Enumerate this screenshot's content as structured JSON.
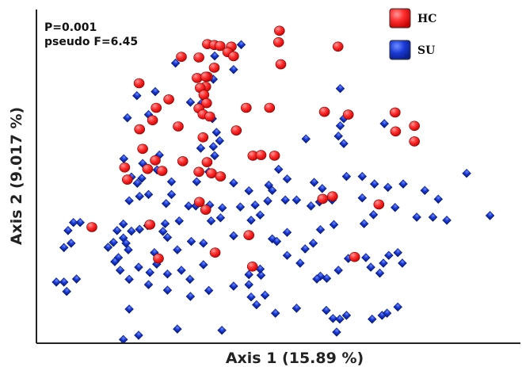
{
  "chart_data": {
    "type": "scatter",
    "title": "",
    "xlabel": "Axis 1 (15.89 %)",
    "ylabel": "Axis 2 (9.017 %)",
    "xlim": [
      0,
      100
    ],
    "ylim": [
      0,
      100
    ],
    "grid": false,
    "legend_position": "top-right",
    "annotations": [
      "P=0.001",
      "pseudo F=6.45"
    ],
    "series": [
      {
        "name": "HC",
        "color": "#ff2a2a",
        "marker": "circle",
        "points": [
          [
            51.2,
            97.5
          ],
          [
            51.0,
            93.8
          ],
          [
            51.5,
            86.7
          ],
          [
            64.2,
            92.4
          ],
          [
            35.2,
            93.2
          ],
          [
            36.7,
            92.9
          ],
          [
            38.0,
            92.6
          ],
          [
            40.5,
            92.4
          ],
          [
            39.7,
            90.6
          ],
          [
            41.0,
            89.3
          ],
          [
            29.4,
            89.1
          ],
          [
            33.3,
            88.9
          ],
          [
            36.7,
            85.6
          ],
          [
            35.2,
            82.7
          ],
          [
            32.9,
            82.3
          ],
          [
            34.8,
            82.7
          ],
          [
            20.0,
            80.6
          ],
          [
            34.8,
            79.5
          ],
          [
            33.6,
            79.1
          ],
          [
            34.4,
            76.9
          ],
          [
            35.0,
            74.2
          ],
          [
            26.6,
            75.4
          ],
          [
            23.8,
            72.7
          ],
          [
            33.3,
            72.5
          ],
          [
            34.2,
            70.6
          ],
          [
            23.0,
            68.7
          ],
          [
            35.7,
            69.9
          ],
          [
            43.8,
            72.7
          ],
          [
            49.0,
            72.7
          ],
          [
            28.7,
            66.7
          ],
          [
            20.1,
            65.8
          ],
          [
            41.6,
            65.4
          ],
          [
            34.2,
            63.2
          ],
          [
            20.8,
            59.5
          ],
          [
            45.3,
            57.3
          ],
          [
            47.1,
            57.5
          ],
          [
            50.1,
            57.3
          ],
          [
            23.6,
            55.8
          ],
          [
            29.7,
            55.5
          ],
          [
            35.1,
            55.2
          ],
          [
            16.8,
            53.5
          ],
          [
            21.9,
            53.0
          ],
          [
            25.1,
            52.4
          ],
          [
            33.3,
            52.1
          ],
          [
            36.1,
            51.6
          ],
          [
            38.1,
            50.6
          ],
          [
            17.4,
            49.6
          ],
          [
            61.2,
            71.4
          ],
          [
            66.5,
            70.5
          ],
          [
            76.9,
            71.2
          ],
          [
            81.2,
            66.9
          ],
          [
            77.0,
            65.1
          ],
          [
            81.2,
            61.9
          ],
          [
            60.8,
            43.4
          ],
          [
            63.0,
            44.2
          ],
          [
            73.3,
            41.6
          ],
          [
            33.4,
            42.4
          ],
          [
            34.8,
            39.9
          ],
          [
            22.4,
            35.1
          ],
          [
            44.4,
            31.7
          ],
          [
            67.9,
            24.7
          ],
          [
            9.5,
            34.3
          ],
          [
            24.3,
            24.2
          ],
          [
            36.9,
            26.1
          ],
          [
            45.2,
            21.6
          ]
        ]
      },
      {
        "name": "SU",
        "color": "#1a33cc",
        "marker": "diamond",
        "points": [
          [
            41.0,
            85.0
          ],
          [
            28.1,
            87.1
          ],
          [
            36.8,
            89.4
          ],
          [
            42.7,
            93.0
          ],
          [
            36.5,
            81.9
          ],
          [
            23.6,
            77.9
          ],
          [
            19.5,
            76.6
          ],
          [
            31.4,
            74.5
          ],
          [
            33.9,
            74.2
          ],
          [
            17.4,
            69.5
          ],
          [
            22.1,
            70.5
          ],
          [
            36.3,
            69.2
          ],
          [
            64.7,
            78.9
          ],
          [
            65.5,
            69.2
          ],
          [
            64.7,
            66.9
          ],
          [
            74.5,
            67.6
          ],
          [
            64.3,
            63.6
          ],
          [
            65.5,
            61.2
          ],
          [
            57.1,
            62.7
          ],
          [
            37.2,
            64.8
          ],
          [
            37.9,
            62.1
          ],
          [
            36.5,
            60.2
          ],
          [
            33.7,
            59.7
          ],
          [
            36.8,
            57.3
          ],
          [
            24.5,
            57.5
          ],
          [
            16.6,
            56.3
          ],
          [
            20.8,
            54.8
          ],
          [
            24.0,
            52.7
          ],
          [
            35.5,
            52.1
          ],
          [
            20.6,
            50.0
          ],
          [
            18.3,
            50.4
          ],
          [
            27.2,
            48.9
          ],
          [
            32.8,
            48.9
          ],
          [
            51.0,
            52.9
          ],
          [
            52.9,
            49.8
          ],
          [
            41.0,
            48.5
          ],
          [
            44.4,
            46.0
          ],
          [
            48.8,
            47.8
          ],
          [
            49.6,
            46.1
          ],
          [
            58.9,
            48.7
          ],
          [
            60.7,
            46.7
          ],
          [
            66.1,
            50.6
          ],
          [
            69.6,
            50.6
          ],
          [
            72.3,
            48.2
          ],
          [
            75.3,
            47.1
          ],
          [
            78.7,
            48.2
          ],
          [
            62.9,
            43.0
          ],
          [
            60.1,
            42.4
          ],
          [
            58.2,
            41.1
          ],
          [
            19.6,
            48.4
          ],
          [
            22.1,
            44.8
          ],
          [
            20.1,
            44.2
          ],
          [
            17.8,
            42.8
          ],
          [
            27.2,
            44.8
          ],
          [
            26.0,
            41.9
          ],
          [
            31.0,
            41.1
          ],
          [
            32.6,
            41.1
          ],
          [
            35.7,
            41.4
          ],
          [
            38.5,
            40.5
          ],
          [
            42.5,
            40.8
          ],
          [
            45.8,
            41.4
          ],
          [
            48.6,
            42.7
          ],
          [
            52.5,
            43.0
          ],
          [
            55.0,
            43.0
          ],
          [
            69.6,
            43.7
          ],
          [
            83.5,
            46.1
          ],
          [
            86.5,
            43.3
          ],
          [
            76.9,
            40.6
          ],
          [
            81.7,
            37.5
          ],
          [
            85.3,
            37.5
          ],
          [
            88.4,
            36.5
          ],
          [
            92.8,
            51.6
          ],
          [
            98.0,
            38.0
          ],
          [
            46.9,
            38.2
          ],
          [
            44.9,
            36.5
          ],
          [
            38.1,
            37.3
          ],
          [
            36.0,
            36.3
          ],
          [
            28.9,
            36.3
          ],
          [
            25.8,
            35.4
          ],
          [
            21.9,
            34.8
          ],
          [
            20.1,
            33.6
          ],
          [
            16.5,
            35.3
          ],
          [
            18.3,
            33.0
          ],
          [
            15.1,
            33.2
          ],
          [
            6.9,
            35.8
          ],
          [
            5.4,
            35.8
          ],
          [
            16.5,
            30.8
          ],
          [
            17.1,
            29.1
          ],
          [
            17.6,
            27.0
          ],
          [
            13.1,
            27.8
          ],
          [
            15.4,
            24.5
          ],
          [
            25.3,
            32.9
          ],
          [
            26.3,
            31.0
          ],
          [
            28.5,
            27.0
          ],
          [
            23.4,
            26.1
          ],
          [
            23.9,
            22.4
          ],
          [
            31.6,
            29.7
          ],
          [
            34.3,
            29.1
          ],
          [
            41.0,
            31.5
          ],
          [
            49.6,
            30.5
          ],
          [
            50.6,
            29.7
          ],
          [
            52.9,
            32.6
          ],
          [
            60.3,
            33.5
          ],
          [
            63.3,
            35.1
          ],
          [
            72.1,
            38.3
          ],
          [
            70.0,
            35.4
          ],
          [
            58.7,
            29.1
          ],
          [
            56.9,
            27.3
          ],
          [
            52.9,
            25.2
          ],
          [
            55.8,
            22.7
          ],
          [
            66.5,
            24.2
          ],
          [
            64.3,
            20.4
          ],
          [
            70.4,
            24.5
          ],
          [
            71.5,
            21.4
          ],
          [
            74.3,
            22.7
          ],
          [
            75.5,
            25.2
          ],
          [
            77.5,
            26.1
          ],
          [
            78.5,
            22.7
          ],
          [
            73.5,
            19.5
          ],
          [
            60.3,
            18.5
          ],
          [
            59.5,
            17.6
          ],
          [
            61.7,
            17.8
          ],
          [
            34.3,
            22.2
          ],
          [
            29.4,
            20.4
          ],
          [
            26.3,
            19.2
          ],
          [
            22.4,
            19.7
          ],
          [
            19.9,
            21.4
          ],
          [
            14.6,
            23.2
          ],
          [
            15.8,
            20.4
          ],
          [
            44.4,
            19.0
          ],
          [
            44.4,
            15.8
          ],
          [
            31.3,
            17.5
          ],
          [
            35.5,
            13.9
          ],
          [
            41.0,
            15.3
          ],
          [
            47.1,
            18.8
          ],
          [
            46.9,
            20.8
          ],
          [
            31.4,
            12.0
          ],
          [
            26.3,
            14.0
          ],
          [
            22.1,
            15.8
          ],
          [
            17.8,
            17.5
          ],
          [
            6.1,
            17.6
          ],
          [
            3.9,
            13.6
          ],
          [
            3.3,
            16.6
          ],
          [
            1.6,
            16.6
          ],
          [
            3.3,
            27.7
          ],
          [
            14.3,
            29.4
          ],
          [
            4.9,
            29.1
          ],
          [
            4.2,
            33.2
          ],
          [
            44.9,
            11.8
          ],
          [
            46.1,
            9.3
          ],
          [
            48.0,
            12.4
          ],
          [
            50.3,
            6.6
          ],
          [
            55.0,
            8.2
          ],
          [
            61.6,
            7.5
          ],
          [
            63.1,
            4.9
          ],
          [
            64.6,
            4.7
          ],
          [
            66.1,
            5.9
          ],
          [
            74.0,
            5.9
          ],
          [
            75.1,
            6.6
          ],
          [
            77.5,
            8.6
          ],
          [
            71.8,
            4.7
          ],
          [
            63.9,
            0.5
          ],
          [
            19.9,
            -0.5
          ],
          [
            28.5,
            1.5
          ],
          [
            38.4,
            1.1
          ],
          [
            17.8,
            7.9
          ],
          [
            16.5,
            -1.9
          ]
        ]
      }
    ]
  }
}
